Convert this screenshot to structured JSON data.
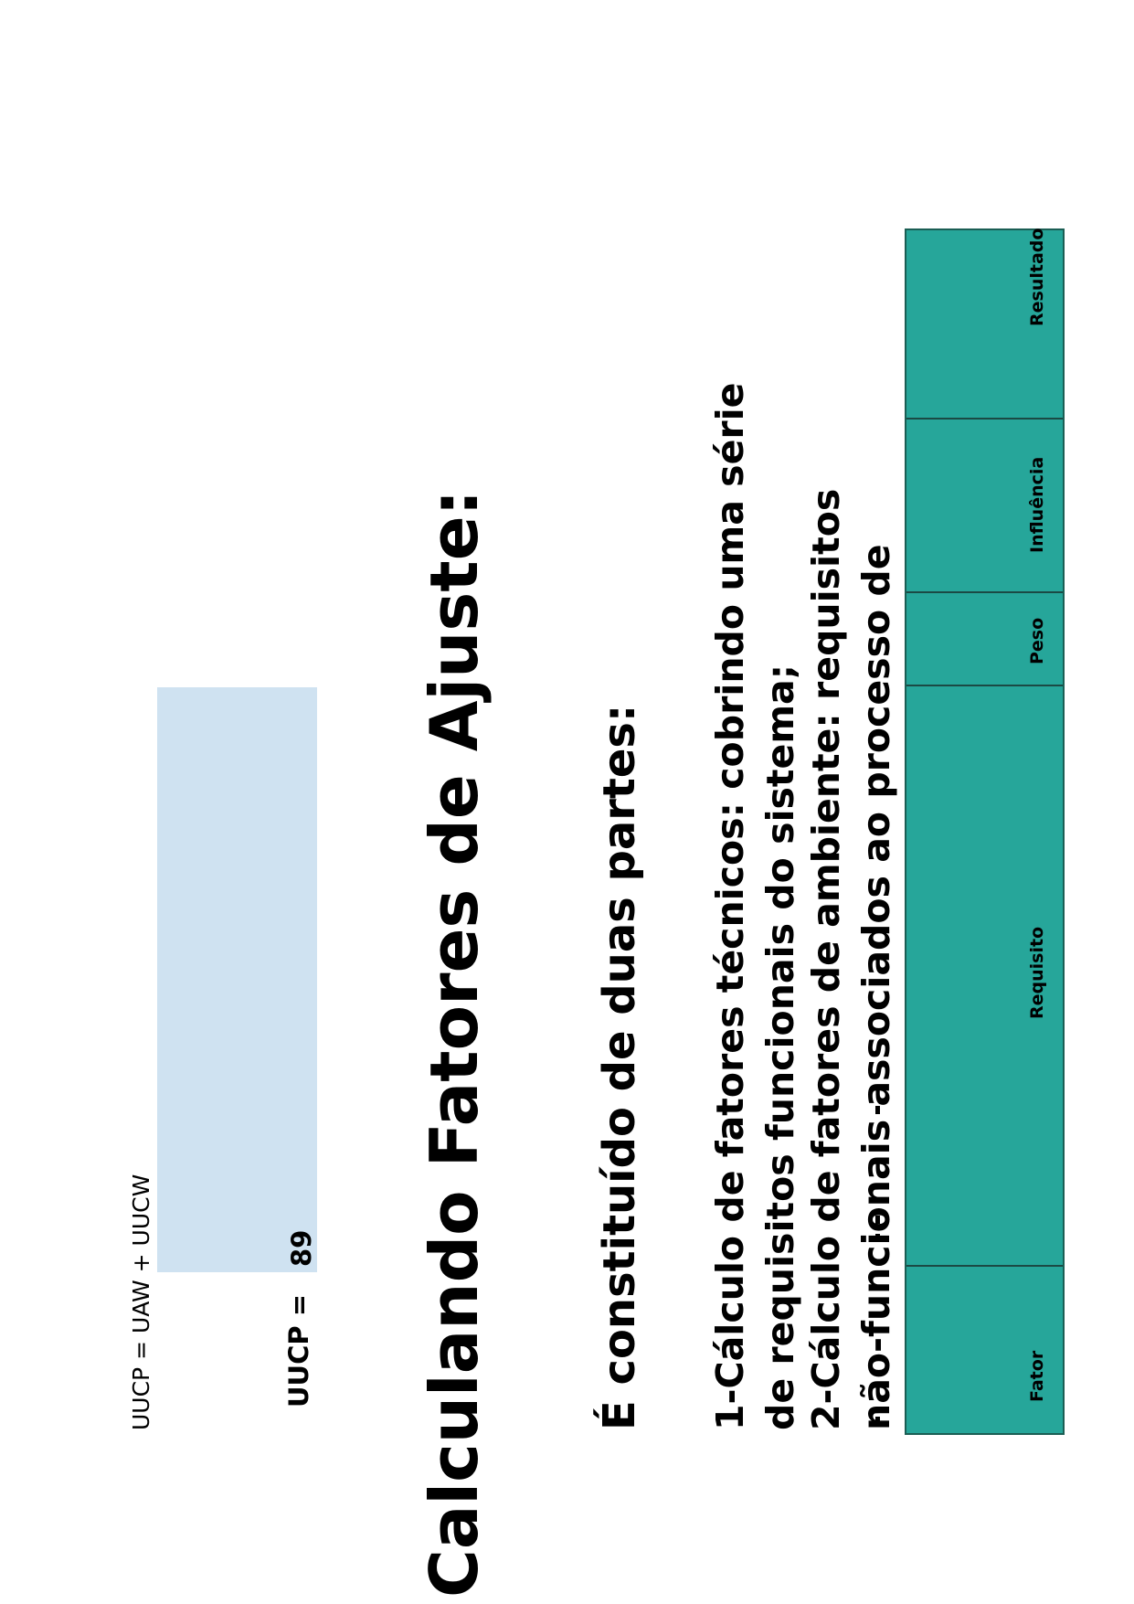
{
  "formula": "UUCP = UAW + UUCW",
  "uucp": {
    "label": "UUCP =",
    "value": "89"
  },
  "heading": "Calculando Fatores de Ajuste:",
  "subheading": "É constituído de duas partes:",
  "body_lines": [
    "1-Cálculo de fatores técnicos: cobrindo uma série",
    "de requisitos funcionais do sistema;",
    "2-Cálculo de fatores de ambiente: requisitos",
    "não-funcionais associados ao processo de"
  ],
  "table": {
    "headers": [
      "Fator",
      "Requisito",
      "Peso",
      "Influência",
      "Resultado"
    ],
    "color": "#26a69a"
  }
}
